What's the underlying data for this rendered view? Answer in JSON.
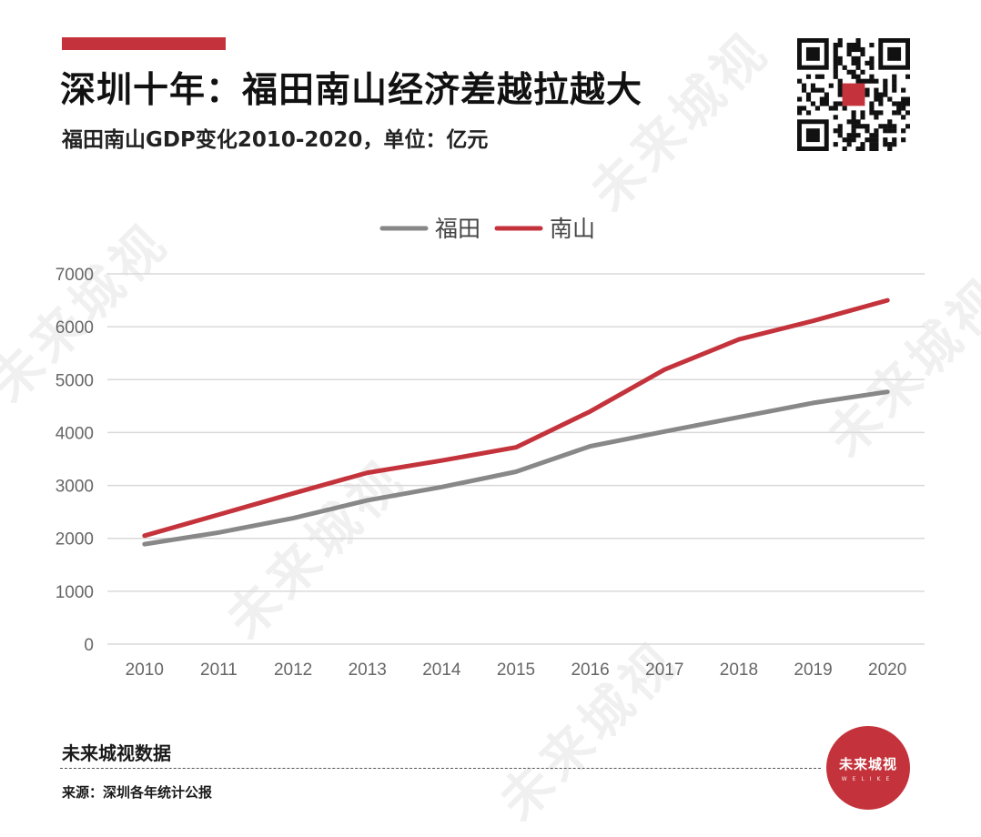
{
  "header": {
    "title": "深圳十年：福田南山经济差越拉越大",
    "subtitle": "福田南山GDP变化2010-2020，单位：亿元"
  },
  "footer": {
    "brand": "未来城视数据",
    "source": "来源：深圳各年统计公报",
    "logo_text": "未来城视",
    "logo_sub": "WELIKE"
  },
  "watermark": {
    "text": "未来城视"
  },
  "colors": {
    "accent": "#c4333b",
    "futian": "#888888",
    "nanshan": "#c4333b",
    "grid": "#d9d9d9"
  },
  "chart_data": {
    "type": "line",
    "title": "",
    "xlabel": "",
    "ylabel": "",
    "categories": [
      "2010",
      "2011",
      "2012",
      "2013",
      "2014",
      "2015",
      "2016",
      "2017",
      "2018",
      "2019",
      "2020"
    ],
    "ylim": [
      0,
      7000
    ],
    "yticks": [
      "0",
      "1000",
      "2000",
      "3000",
      "4000",
      "5000",
      "6000",
      "7000"
    ],
    "grid": true,
    "legend": "top-center",
    "series": [
      {
        "name": "福田",
        "color": "#888888",
        "values": [
          1890,
          2110,
          2380,
          2720,
          2970,
          3260,
          3740,
          4020,
          4290,
          4560,
          4770
        ]
      },
      {
        "name": "南山",
        "color": "#c4333b",
        "values": [
          2050,
          2450,
          2850,
          3240,
          3470,
          3720,
          4400,
          5190,
          5760,
          6110,
          6500
        ]
      }
    ]
  }
}
